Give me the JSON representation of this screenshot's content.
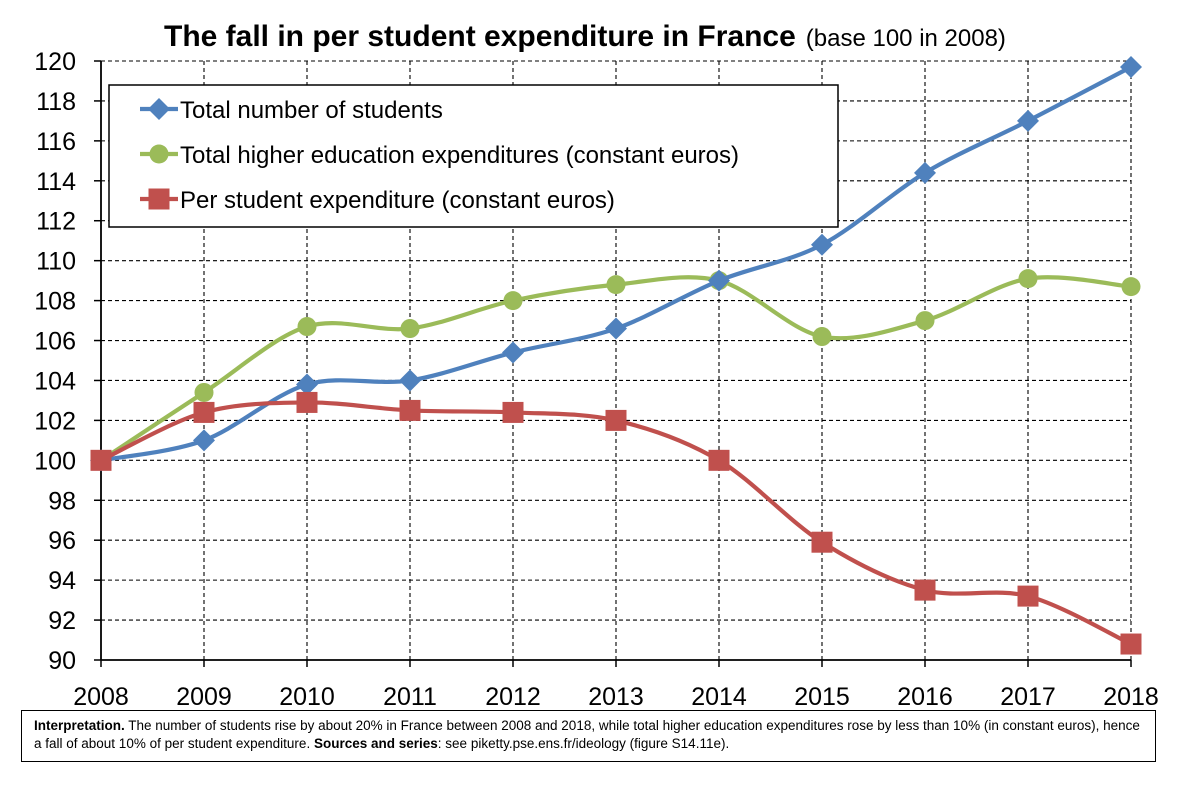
{
  "chart_data": {
    "type": "line",
    "title": "The fall in per student expenditure in France",
    "subtitle": "(base 100 in 2008)",
    "xlabel": "",
    "ylabel": "",
    "x": [
      "2008",
      "2009",
      "2010",
      "2011",
      "2012",
      "2013",
      "2014",
      "2015",
      "2016",
      "2017",
      "2018"
    ],
    "ylim": [
      90,
      120
    ],
    "yticks": [
      90,
      92,
      94,
      96,
      98,
      100,
      102,
      104,
      106,
      108,
      110,
      112,
      114,
      116,
      118,
      120
    ],
    "grid": true,
    "legend_position": "top-left",
    "series": [
      {
        "name": "Total number of students",
        "color": "#4f81bd",
        "marker": "diamond",
        "values": [
          100,
          101,
          103.8,
          104,
          105.4,
          106.6,
          109,
          110.8,
          114.4,
          117,
          119.7
        ]
      },
      {
        "name": "Total higher education expenditures (constant euros)",
        "color": "#9bbb59",
        "marker": "circle",
        "values": [
          100,
          103.4,
          106.7,
          106.6,
          108,
          108.8,
          109,
          106.2,
          107,
          109.1,
          108.7
        ]
      },
      {
        "name": "Per student expenditure (constant euros)",
        "color": "#c0504d",
        "marker": "square",
        "values": [
          100,
          102.4,
          102.9,
          102.5,
          102.4,
          102,
          100,
          95.9,
          93.5,
          93.2,
          90.8
        ]
      }
    ]
  },
  "interpretation": {
    "label": "Interpretation.",
    "text": "The number of students rise by about 20% in France between 2008 and 2018, while total higher education expenditures rose by less than 10% (in constant euros), hence a fall of about 10% of per student expenditure.",
    "sources_label": "Sources and series",
    "sources_text": ": see piketty.pse.ens.fr/ideology (figure S14.11e)."
  }
}
